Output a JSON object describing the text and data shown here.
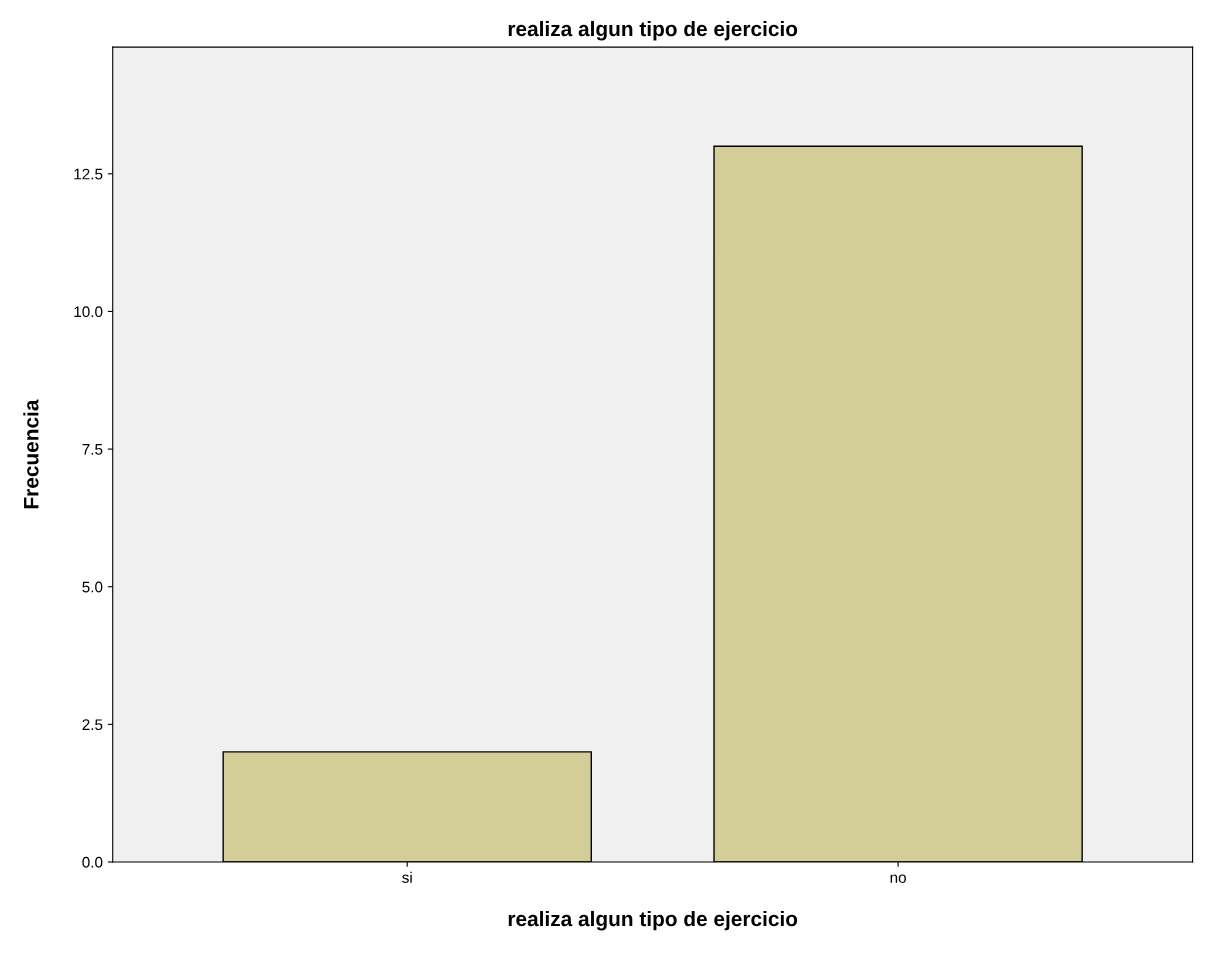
{
  "chart_data": {
    "type": "bar",
    "title": "realiza algun tipo de ejercicio",
    "xlabel": "realiza algun tipo de ejercicio",
    "ylabel": "Frecuencia",
    "categories": [
      "si",
      "no"
    ],
    "series": [
      {
        "color": "#d3ce97",
        "values": [
          2,
          13
        ]
      }
    ],
    "ylim": [
      0,
      14.8
    ],
    "yticks": [
      {
        "value": 0,
        "label": "0.0"
      },
      {
        "value": 2.5,
        "label": "2.5"
      },
      {
        "value": 5,
        "label": "5.0"
      },
      {
        "value": 7.5,
        "label": "7.5"
      },
      {
        "value": 10,
        "label": "10.0"
      },
      {
        "value": 12.5,
        "label": "12.5"
      }
    ],
    "grid": false,
    "legend": false
  }
}
